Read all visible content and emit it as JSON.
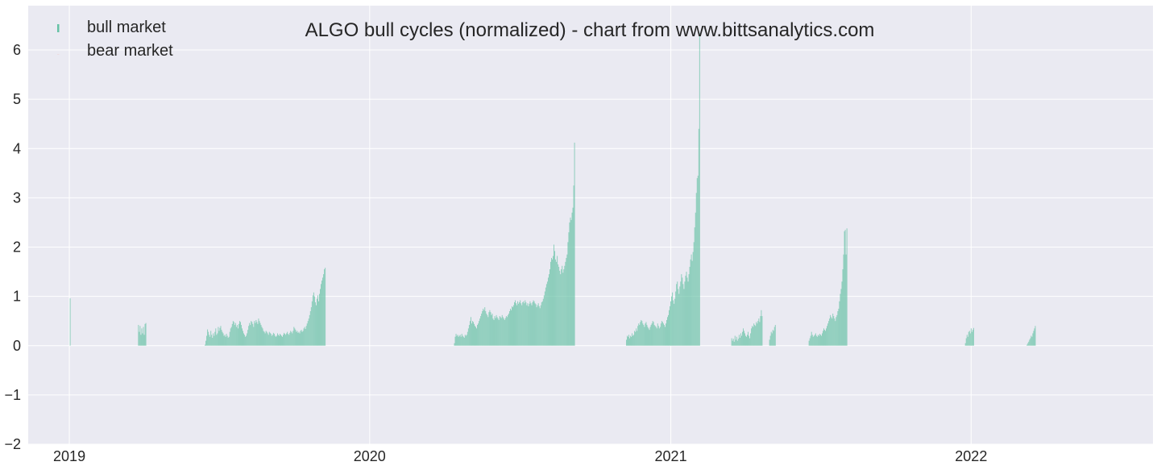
{
  "chart_data": {
    "type": "bar",
    "title": "ALGO bull cycles (normalized)  - chart from www.bittsanalytics.com",
    "xlabel": "",
    "ylabel": "",
    "x_axis": {
      "type": "date",
      "range": [
        "2018-11-12",
        "2022-08-10"
      ],
      "ticks": [
        {
          "date": "2019-01-01",
          "label": "2019"
        },
        {
          "date": "2020-01-01",
          "label": "2020"
        },
        {
          "date": "2021-01-01",
          "label": "2021"
        },
        {
          "date": "2022-01-01",
          "label": "2022"
        }
      ]
    },
    "y_axis": {
      "range": [
        -2,
        6.9
      ],
      "ticks": [
        {
          "value": 6,
          "label": "6"
        },
        {
          "value": 5,
          "label": "5"
        },
        {
          "value": 4,
          "label": "4"
        },
        {
          "value": 3,
          "label": "3"
        },
        {
          "value": 2,
          "label": "2"
        },
        {
          "value": 1,
          "label": "1"
        },
        {
          "value": 0,
          "label": "0"
        },
        {
          "value": -1,
          "label": "−1"
        },
        {
          "value": -2,
          "label": "−2"
        }
      ]
    },
    "grid": true,
    "legend": {
      "placement": "top-left",
      "entries": [
        {
          "label": "bull market",
          "color": "#66c2a5"
        },
        {
          "label": "bear market",
          "color": "#fc8d62"
        }
      ]
    },
    "colors": {
      "bull": "#66c2a5",
      "plot_background": "#eaeaf2",
      "grid": "#ffffff"
    },
    "series": [
      {
        "name": "bull market",
        "segments": [
          {
            "start": "2019-01-01",
            "values": [
              0.0,
              0.96,
              0.0
            ]
          },
          {
            "start": "2019-03-25",
            "values": [
              0.0,
              0.42,
              0.28,
              0.4,
              0.22,
              0.35,
              0.25,
              0.38,
              0.22,
              0.44,
              0.46
            ]
          },
          {
            "start": "2019-06-15",
            "values": [
              0.02,
              0.1,
              0.2,
              0.33,
              0.28,
              0.22,
              0.18,
              0.3,
              0.22,
              0.16,
              0.25,
              0.2,
              0.28,
              0.35,
              0.22,
              0.25,
              0.38,
              0.3,
              0.36,
              0.4,
              0.32,
              0.28,
              0.25,
              0.2,
              0.22,
              0.18,
              0.24,
              0.2,
              0.16,
              0.18,
              0.28,
              0.35,
              0.38,
              0.44,
              0.5,
              0.48,
              0.42,
              0.46,
              0.38,
              0.42,
              0.35,
              0.44,
              0.5,
              0.48,
              0.42,
              0.35,
              0.3,
              0.25,
              0.22,
              0.18,
              0.2,
              0.25,
              0.32,
              0.4,
              0.46,
              0.42,
              0.5,
              0.48,
              0.44,
              0.38,
              0.5,
              0.46,
              0.52,
              0.48,
              0.44,
              0.55,
              0.5,
              0.46,
              0.42,
              0.38,
              0.35,
              0.3,
              0.28,
              0.25,
              0.3,
              0.28,
              0.25,
              0.22,
              0.28,
              0.26,
              0.24,
              0.2,
              0.22,
              0.26,
              0.24,
              0.2,
              0.18,
              0.2,
              0.25,
              0.22,
              0.2,
              0.24,
              0.22,
              0.2,
              0.18,
              0.22,
              0.26,
              0.24,
              0.22,
              0.25,
              0.28,
              0.24,
              0.22,
              0.26,
              0.3,
              0.28,
              0.25,
              0.3,
              0.38,
              0.35,
              0.32,
              0.28,
              0.3,
              0.26,
              0.28,
              0.25,
              0.3,
              0.32,
              0.28,
              0.3,
              0.35,
              0.38,
              0.34,
              0.4,
              0.45,
              0.5,
              0.55,
              0.62,
              0.7,
              0.78,
              0.9,
              1.02,
              1.08,
              1.0,
              0.88,
              0.82,
              0.95,
              1.02,
              0.9,
              1.05,
              1.15,
              1.25,
              1.32,
              1.38,
              1.45,
              1.55,
              1.58
            ]
          },
          {
            "start": "2020-04-13",
            "values": [
              0.05,
              0.18,
              0.24,
              0.2,
              0.22,
              0.18,
              0.2,
              0.22,
              0.18,
              0.24,
              0.2,
              0.18,
              0.16,
              0.22,
              0.2,
              0.22,
              0.28,
              0.35,
              0.42,
              0.5,
              0.58,
              0.45,
              0.5,
              0.48,
              0.44,
              0.4,
              0.38,
              0.35,
              0.42,
              0.45,
              0.5,
              0.55,
              0.6,
              0.65,
              0.7,
              0.75,
              0.72,
              0.78,
              0.7,
              0.65,
              0.62,
              0.58,
              0.68,
              0.72,
              0.68,
              0.62,
              0.65,
              0.55,
              0.52,
              0.6,
              0.56,
              0.62,
              0.58,
              0.55,
              0.52,
              0.6,
              0.58,
              0.56,
              0.62,
              0.58,
              0.55,
              0.52,
              0.56,
              0.6,
              0.58,
              0.62,
              0.65,
              0.7,
              0.75,
              0.72,
              0.8,
              0.78,
              0.82,
              0.88,
              0.92,
              0.86,
              0.82,
              0.9,
              0.85,
              0.88,
              0.92,
              0.86,
              0.82,
              0.88,
              0.9,
              0.86,
              0.92,
              0.88,
              0.82,
              0.86,
              0.8,
              0.85,
              0.9,
              0.86,
              0.82,
              0.88,
              0.92,
              0.9,
              0.86,
              0.84,
              0.78,
              0.82,
              0.86,
              0.8,
              0.76,
              0.82,
              0.88,
              0.9,
              0.95,
              1.02,
              1.1,
              1.18,
              1.25,
              1.3,
              1.38,
              1.45,
              1.55,
              1.7,
              1.78,
              1.75,
              1.82,
              2.05,
              1.92,
              1.75,
              1.7,
              1.82,
              1.65,
              1.6,
              1.52,
              1.45,
              1.55,
              1.62,
              1.48,
              1.55,
              1.62,
              1.7,
              1.78,
              1.85,
              2.1,
              2.3,
              2.5,
              2.6,
              2.55,
              2.7,
              2.8,
              3.25,
              4.12
            ]
          },
          {
            "start": "2020-11-08",
            "values": [
              0.12,
              0.2,
              0.18,
              0.22,
              0.15,
              0.2,
              0.18,
              0.25,
              0.2,
              0.22,
              0.3,
              0.28,
              0.35,
              0.3,
              0.4,
              0.45,
              0.42,
              0.48,
              0.52,
              0.5,
              0.45,
              0.42,
              0.38,
              0.45,
              0.48,
              0.42,
              0.38,
              0.35,
              0.32,
              0.38,
              0.42,
              0.45,
              0.5,
              0.48,
              0.42,
              0.4,
              0.38,
              0.35,
              0.45,
              0.4,
              0.35,
              0.38,
              0.45,
              0.5,
              0.48,
              0.45,
              0.42,
              0.38,
              0.45,
              0.52,
              0.58,
              0.62,
              0.72,
              0.8,
              0.9,
              1.0,
              1.08,
              0.92,
              0.85,
              0.95,
              1.1,
              1.25,
              1.3,
              1.15,
              1.05,
              1.2,
              1.3,
              1.45,
              1.38,
              1.25,
              1.15,
              1.3,
              1.42,
              1.5,
              1.38,
              1.3,
              1.45,
              1.6,
              1.75,
              1.85,
              1.72,
              1.9,
              2.1,
              2.4,
              2.7,
              3.1,
              3.4,
              3.45,
              4.4,
              6.35
            ]
          },
          {
            "start": "2021-03-16",
            "values": [
              0.15,
              0.1,
              0.14,
              0.08,
              0.2,
              0.12,
              0.18,
              0.1,
              0.14,
              0.22,
              0.16,
              0.25,
              0.2,
              0.28,
              0.35,
              0.3,
              0.25,
              0.2,
              0.18,
              0.22,
              0.28,
              0.2,
              0.15,
              0.25,
              0.35,
              0.4,
              0.38,
              0.45,
              0.42,
              0.4,
              0.48,
              0.45,
              0.5,
              0.55,
              0.48,
              0.6,
              0.72,
              0.6
            ]
          },
          {
            "start": "2021-05-01",
            "values": [
              0.12,
              0.2,
              0.28,
              0.25,
              0.32,
              0.3,
              0.38,
              0.42
            ]
          },
          {
            "start": "2021-06-18",
            "values": [
              0.1,
              0.15,
              0.2,
              0.28,
              0.22,
              0.18,
              0.2,
              0.22,
              0.25,
              0.2,
              0.18,
              0.22,
              0.2,
              0.24,
              0.22,
              0.2,
              0.25,
              0.3,
              0.35,
              0.32,
              0.3,
              0.35,
              0.4,
              0.45,
              0.5,
              0.55,
              0.62,
              0.58,
              0.55,
              0.65,
              0.6,
              0.55,
              0.5,
              0.58,
              0.62,
              0.7,
              0.75,
              0.9,
              1.05,
              1.15,
              1.3,
              1.55,
              1.85,
              2.32,
              2.35,
              1.85,
              2.38
            ]
          },
          {
            "start": "2021-12-25",
            "values": [
              0.05,
              0.15,
              0.22,
              0.18,
              0.28,
              0.3,
              0.25,
              0.35,
              0.28,
              0.32,
              0.36
            ]
          },
          {
            "start": "2022-03-10",
            "values": [
              0.02,
              0.05,
              0.08,
              0.12,
              0.15,
              0.2,
              0.18,
              0.25,
              0.3,
              0.35,
              0.4
            ]
          }
        ]
      }
    ]
  }
}
